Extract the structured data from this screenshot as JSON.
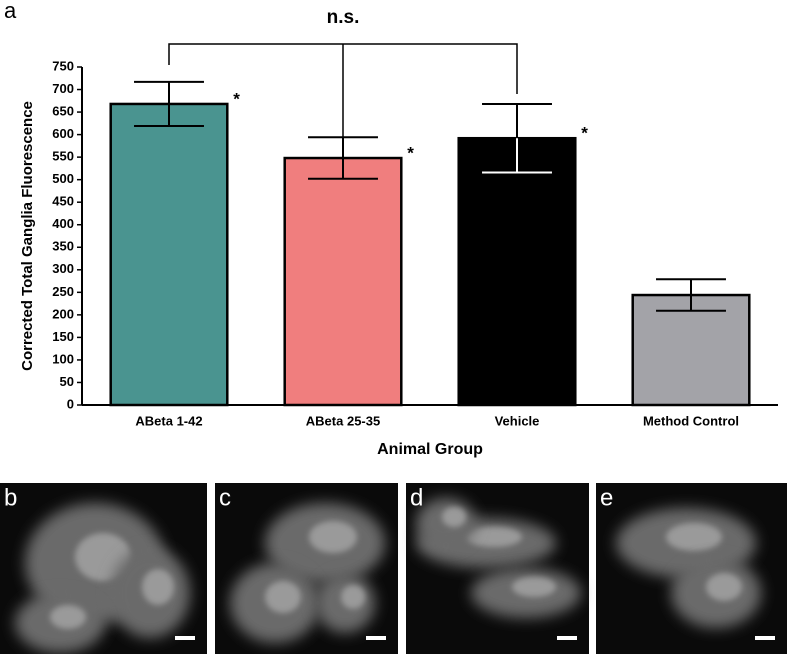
{
  "figure_label": "a",
  "chart_data": {
    "type": "bar",
    "bracket_label": "n.s.",
    "y_label": "Corrected Total Ganglia Fluorescence",
    "x_label": "Animal Group",
    "categories": [
      "ABeta 1-42",
      "ABeta 25-35",
      "Vehicle",
      "Method Control"
    ],
    "values": [
      668,
      548,
      592,
      244
    ],
    "errors": [
      49,
      46,
      76,
      35
    ],
    "colors": [
      "#4a9490",
      "#f07e7e",
      "#000000",
      "#a3a3a8"
    ],
    "bar_marks": [
      "*",
      "*",
      "*",
      null
    ],
    "ylim": [
      0,
      750
    ],
    "yticks": [
      0,
      50,
      100,
      150,
      200,
      250,
      300,
      350,
      400,
      450,
      500,
      550,
      600,
      650,
      700,
      750
    ]
  },
  "panels": [
    "b",
    "c",
    "d",
    "e"
  ]
}
